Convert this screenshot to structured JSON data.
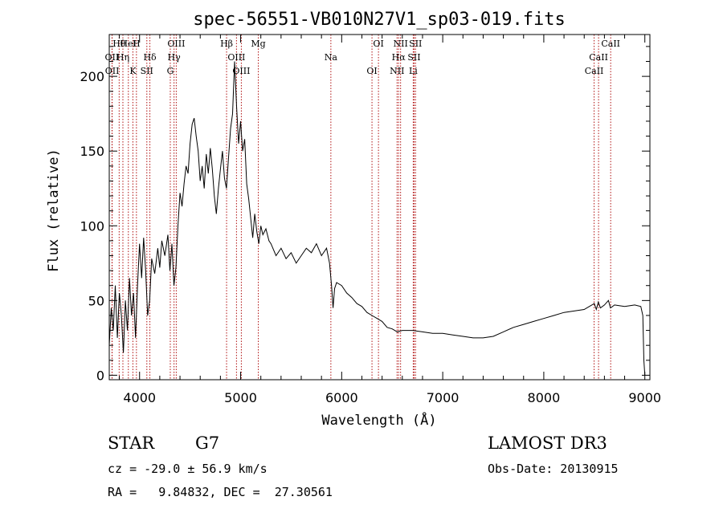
{
  "chart_data": {
    "type": "line",
    "title": "spec-56551-VB010N27V1_sp03-019.fits",
    "xlabel": "Wavelength (Å)",
    "ylabel": "Flux (relative)",
    "xlim": [
      3700,
      9050
    ],
    "ylim": [
      -3,
      228
    ],
    "xticks": [
      4000,
      5000,
      6000,
      7000,
      8000,
      9000
    ],
    "yticks": [
      0,
      50,
      100,
      150,
      200
    ],
    "series": [
      {
        "name": "flux",
        "points": [
          [
            3700,
            20
          ],
          [
            3720,
            45
          ],
          [
            3740,
            30
          ],
          [
            3760,
            60
          ],
          [
            3780,
            25
          ],
          [
            3800,
            55
          ],
          [
            3820,
            40
          ],
          [
            3840,
            15
          ],
          [
            3860,
            50
          ],
          [
            3880,
            30
          ],
          [
            3900,
            65
          ],
          [
            3920,
            40
          ],
          [
            3940,
            55
          ],
          [
            3960,
            25
          ],
          [
            3980,
            60
          ],
          [
            4000,
            88
          ],
          [
            4020,
            65
          ],
          [
            4040,
            92
          ],
          [
            4060,
            70
          ],
          [
            4080,
            40
          ],
          [
            4100,
            50
          ],
          [
            4120,
            78
          ],
          [
            4150,
            68
          ],
          [
            4180,
            85
          ],
          [
            4200,
            72
          ],
          [
            4220,
            90
          ],
          [
            4250,
            80
          ],
          [
            4280,
            94
          ],
          [
            4300,
            70
          ],
          [
            4320,
            88
          ],
          [
            4340,
            60
          ],
          [
            4360,
            72
          ],
          [
            4380,
            100
          ],
          [
            4400,
            122
          ],
          [
            4420,
            113
          ],
          [
            4440,
            128
          ],
          [
            4460,
            140
          ],
          [
            4480,
            135
          ],
          [
            4500,
            155
          ],
          [
            4520,
            168
          ],
          [
            4540,
            172
          ],
          [
            4560,
            160
          ],
          [
            4580,
            150
          ],
          [
            4600,
            130
          ],
          [
            4620,
            140
          ],
          [
            4640,
            125
          ],
          [
            4660,
            148
          ],
          [
            4680,
            135
          ],
          [
            4700,
            152
          ],
          [
            4720,
            138
          ],
          [
            4740,
            120
          ],
          [
            4760,
            108
          ],
          [
            4780,
            125
          ],
          [
            4800,
            138
          ],
          [
            4820,
            150
          ],
          [
            4840,
            132
          ],
          [
            4860,
            125
          ],
          [
            4880,
            145
          ],
          [
            4900,
            165
          ],
          [
            4920,
            175
          ],
          [
            4940,
            210
          ],
          [
            4960,
            180
          ],
          [
            4980,
            155
          ],
          [
            5000,
            170
          ],
          [
            5020,
            150
          ],
          [
            5040,
            158
          ],
          [
            5060,
            128
          ],
          [
            5080,
            118
          ],
          [
            5100,
            105
          ],
          [
            5120,
            92
          ],
          [
            5140,
            108
          ],
          [
            5160,
            96
          ],
          [
            5180,
            88
          ],
          [
            5200,
            100
          ],
          [
            5220,
            94
          ],
          [
            5250,
            98
          ],
          [
            5280,
            90
          ],
          [
            5300,
            88
          ],
          [
            5350,
            80
          ],
          [
            5400,
            85
          ],
          [
            5450,
            78
          ],
          [
            5500,
            82
          ],
          [
            5550,
            75
          ],
          [
            5600,
            80
          ],
          [
            5650,
            85
          ],
          [
            5700,
            82
          ],
          [
            5750,
            88
          ],
          [
            5800,
            80
          ],
          [
            5850,
            85
          ],
          [
            5880,
            75
          ],
          [
            5900,
            60
          ],
          [
            5915,
            45
          ],
          [
            5930,
            58
          ],
          [
            5950,
            62
          ],
          [
            6000,
            60
          ],
          [
            6050,
            55
          ],
          [
            6100,
            52
          ],
          [
            6150,
            48
          ],
          [
            6200,
            46
          ],
          [
            6250,
            42
          ],
          [
            6300,
            40
          ],
          [
            6350,
            38
          ],
          [
            6400,
            36
          ],
          [
            6450,
            32
          ],
          [
            6500,
            31
          ],
          [
            6550,
            29
          ],
          [
            6600,
            30
          ],
          [
            6700,
            30
          ],
          [
            6800,
            29
          ],
          [
            6900,
            28
          ],
          [
            7000,
            28
          ],
          [
            7100,
            27
          ],
          [
            7200,
            26
          ],
          [
            7300,
            25
          ],
          [
            7400,
            25
          ],
          [
            7500,
            26
          ],
          [
            7600,
            29
          ],
          [
            7700,
            32
          ],
          [
            7800,
            34
          ],
          [
            7900,
            36
          ],
          [
            8000,
            38
          ],
          [
            8100,
            40
          ],
          [
            8200,
            42
          ],
          [
            8300,
            43
          ],
          [
            8400,
            44
          ],
          [
            8450,
            46
          ],
          [
            8500,
            48
          ],
          [
            8520,
            44
          ],
          [
            8540,
            49
          ],
          [
            8560,
            45
          ],
          [
            8600,
            47
          ],
          [
            8640,
            50
          ],
          [
            8660,
            45
          ],
          [
            8700,
            47
          ],
          [
            8800,
            46
          ],
          [
            8900,
            47
          ],
          [
            8960,
            46
          ],
          [
            8980,
            40
          ],
          [
            8990,
            10
          ],
          [
            9000,
            0
          ]
        ]
      }
    ],
    "lines": [
      {
        "name": "Hθ",
        "wave": 3798
      },
      {
        "name": "OII",
        "wave": 3727
      },
      {
        "name": "OII",
        "wave": 3729
      },
      {
        "name": "HeI",
        "wave": 3889
      },
      {
        "name": "Hη",
        "wave": 3835
      },
      {
        "name": "K",
        "wave": 3934
      },
      {
        "name": "H",
        "wave": 3969
      },
      {
        "name": "Hδ",
        "wave": 4102
      },
      {
        "name": "SII",
        "wave": 4072
      },
      {
        "name": "OIII",
        "wave": 4363
      },
      {
        "name": "Hγ",
        "wave": 4341
      },
      {
        "name": "G",
        "wave": 4304
      },
      {
        "name": "Hβ",
        "wave": 4861
      },
      {
        "name": "OIII",
        "wave": 4959
      },
      {
        "name": "OIII",
        "wave": 5007
      },
      {
        "name": "Mg",
        "wave": 5175
      },
      {
        "name": "Na",
        "wave": 5893
      },
      {
        "name": "OI",
        "wave": 6300
      },
      {
        "name": "OI",
        "wave": 6364
      },
      {
        "name": "Hα",
        "wave": 6563
      },
      {
        "name": "NII",
        "wave": 6548
      },
      {
        "name": "NII",
        "wave": 6583
      },
      {
        "name": "SII",
        "wave": 6717
      },
      {
        "name": "Li",
        "wave": 6708
      },
      {
        "name": "SII",
        "wave": 6731
      },
      {
        "name": "CaII",
        "wave": 8542
      },
      {
        "name": "CaII",
        "wave": 8498
      },
      {
        "name": "CaII",
        "wave": 8662
      }
    ]
  },
  "info": {
    "object_type": "STAR",
    "subclass": "G7",
    "survey": "LAMOST DR3",
    "redshift": "cz = -29.0 ± 56.9 km/s",
    "obs_date": "Obs-Date: 20130915",
    "coords": "RA =   9.84832, DEC =  27.30561"
  }
}
